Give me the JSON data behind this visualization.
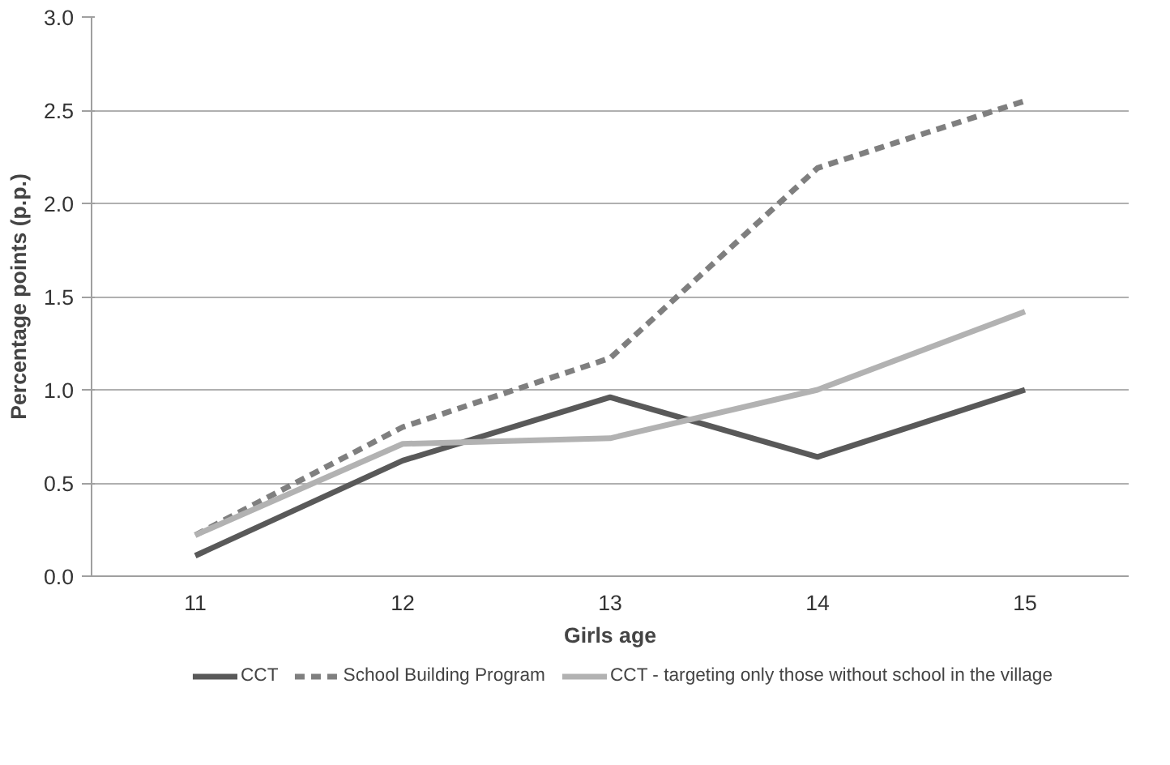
{
  "chart_data": {
    "type": "line",
    "xlabel": "Girls age",
    "ylabel": "Percentage points (p.p.)",
    "categories": [
      "11",
      "12",
      "13",
      "14",
      "15"
    ],
    "ylim": [
      0,
      3
    ],
    "yticks": [
      {
        "value": 0,
        "label": "0.0"
      },
      {
        "value": 0.5,
        "label": "0.5"
      },
      {
        "value": 1,
        "label": "1.0"
      },
      {
        "value": 1.5,
        "label": "1.5"
      },
      {
        "value": 2,
        "label": "2.0"
      },
      {
        "value": 2.5,
        "label": "2.5"
      },
      {
        "value": 3,
        "label": "3.0"
      }
    ],
    "grid": "y",
    "legend": "bottom",
    "marker": "none",
    "series": [
      {
        "name": "CCT",
        "color": "#595959",
        "line_style": "solid",
        "values": [
          0.11,
          0.62,
          0.96,
          0.64,
          1.0
        ]
      },
      {
        "name": "School Building Program",
        "color": "#7f7f7f",
        "line_style": "dashed",
        "values": [
          0.22,
          0.8,
          1.17,
          2.19,
          2.55
        ]
      },
      {
        "name": "CCT - targeting only those without school in the village",
        "color": "#b2b2b2",
        "line_style": "solid",
        "values": [
          0.22,
          0.71,
          0.74,
          1.0,
          1.42
        ]
      }
    ]
  }
}
